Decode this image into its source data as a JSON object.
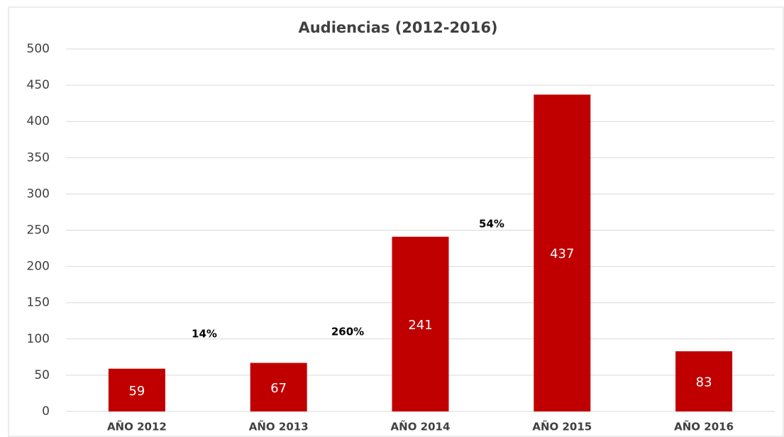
{
  "chart_data": {
    "type": "bar",
    "title": "Audiencias (2012-2016)",
    "categories": [
      "AÑO 2012",
      "AÑO 2013",
      "AÑO 2014",
      "AÑO 2015",
      "AÑO 2016"
    ],
    "values": [
      59,
      67,
      241,
      437,
      83
    ],
    "color": "#c00000",
    "ylim": [
      0,
      500
    ],
    "yticks": [
      0,
      50,
      100,
      150,
      200,
      250,
      300,
      350,
      400,
      450,
      500
    ],
    "grid": true,
    "annotations": [
      "14%",
      "260%",
      "54%"
    ]
  }
}
